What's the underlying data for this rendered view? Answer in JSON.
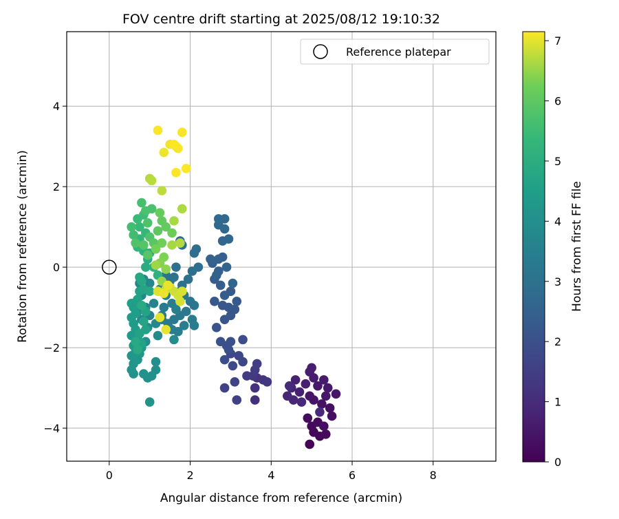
{
  "chart_data": {
    "type": "scatter",
    "title": "FOV centre drift starting at 2025/08/12 19:10:32",
    "xlabel": "Angular distance from reference (arcmin)",
    "ylabel": "Rotation from reference (arcmin)",
    "xlim": [
      -1.05,
      9.55
    ],
    "ylim": [
      -4.82,
      5.85
    ],
    "xticks": [
      {
        "value": 0,
        "label": "0"
      },
      {
        "value": 2,
        "label": "2"
      },
      {
        "value": 4,
        "label": "4"
      },
      {
        "value": 6,
        "label": "6"
      },
      {
        "value": 8,
        "label": "8"
      }
    ],
    "yticks": [
      {
        "value": -4,
        "label": "−4"
      },
      {
        "value": -2,
        "label": "−2"
      },
      {
        "value": 0,
        "label": "0"
      },
      {
        "value": 2,
        "label": "2"
      },
      {
        "value": 4,
        "label": "4"
      }
    ],
    "grid": true,
    "colormap": "viridis",
    "colorbar": {
      "label": "Hours from first FF file",
      "range": [
        0,
        7.15
      ],
      "ticks": [
        {
          "value": 0,
          "label": "0"
        },
        {
          "value": 1,
          "label": "1"
        },
        {
          "value": 2,
          "label": "2"
        },
        {
          "value": 3,
          "label": "3"
        },
        {
          "value": 4,
          "label": "4"
        },
        {
          "value": 5,
          "label": "5"
        },
        {
          "value": 6,
          "label": "6"
        },
        {
          "value": 7,
          "label": "7"
        }
      ]
    },
    "reference": {
      "name": "Reference platepar",
      "x": 0,
      "y": 0,
      "marker": "open circle"
    },
    "legend": {
      "position": "top-right",
      "entries": [
        "Reference platepar"
      ]
    },
    "points_columns": [
      "x_arcmin",
      "y_arcmin",
      "hours"
    ],
    "points": [
      [
        4.95,
        -4.4,
        0.05
      ],
      [
        5.05,
        -4.1,
        0.1
      ],
      [
        5.2,
        -4.2,
        0.12
      ],
      [
        5.35,
        -4.15,
        0.15
      ],
      [
        5.0,
        -3.95,
        0.2
      ],
      [
        4.9,
        -3.75,
        0.22
      ],
      [
        5.15,
        -3.85,
        0.25
      ],
      [
        5.3,
        -3.95,
        0.3
      ],
      [
        5.5,
        -3.7,
        0.32
      ],
      [
        5.45,
        -3.5,
        0.35
      ],
      [
        5.25,
        -3.4,
        0.4
      ],
      [
        5.05,
        -3.3,
        0.42
      ],
      [
        4.95,
        -3.2,
        0.45
      ],
      [
        5.35,
        -3.2,
        0.48
      ],
      [
        5.6,
        -3.15,
        0.5
      ],
      [
        5.4,
        -3.0,
        0.52
      ],
      [
        5.15,
        -2.95,
        0.55
      ],
      [
        5.3,
        -2.8,
        0.6
      ],
      [
        5.05,
        -2.75,
        0.62
      ],
      [
        4.95,
        -2.6,
        0.65
      ],
      [
        5.0,
        -2.5,
        0.68
      ],
      [
        4.85,
        -2.9,
        0.7
      ],
      [
        4.7,
        -3.1,
        0.72
      ],
      [
        4.6,
        -2.8,
        0.75
      ],
      [
        4.5,
        -3.0,
        0.8
      ],
      [
        4.4,
        -3.2,
        0.85
      ],
      [
        4.55,
        -3.3,
        0.88
      ],
      [
        4.75,
        -3.35,
        0.9
      ],
      [
        4.45,
        -2.95,
        0.95
      ],
      [
        5.2,
        -3.6,
        0.98
      ],
      [
        3.6,
        -3.3,
        1.1
      ],
      [
        3.6,
        -3.0,
        1.15
      ],
      [
        3.65,
        -2.75,
        1.2
      ],
      [
        3.8,
        -2.8,
        1.25
      ],
      [
        3.9,
        -2.85,
        1.3
      ],
      [
        3.55,
        -2.7,
        1.35
      ],
      [
        3.4,
        -2.7,
        1.4
      ],
      [
        3.6,
        -2.55,
        1.45
      ],
      [
        3.65,
        -2.4,
        1.5
      ],
      [
        3.15,
        -3.3,
        1.55
      ],
      [
        2.85,
        -3.0,
        1.6
      ],
      [
        3.1,
        -2.85,
        1.65
      ],
      [
        3.3,
        -2.35,
        1.7
      ],
      [
        3.2,
        -2.2,
        1.75
      ],
      [
        3.0,
        -2.15,
        1.8
      ],
      [
        3.05,
        -2.45,
        1.85
      ],
      [
        3.3,
        -1.8,
        1.9
      ],
      [
        2.9,
        -1.95,
        1.95
      ],
      [
        2.85,
        -2.3,
        1.92
      ],
      [
        2.95,
        -2.05,
        1.98
      ],
      [
        3.0,
        -1.85,
        2.0
      ],
      [
        2.75,
        -1.85,
        2.05
      ],
      [
        2.65,
        -1.5,
        2.1
      ],
      [
        2.85,
        -1.3,
        2.12
      ],
      [
        3.0,
        -1.2,
        2.15
      ],
      [
        3.1,
        -1.05,
        2.18
      ],
      [
        2.95,
        -1.0,
        2.2
      ],
      [
        2.8,
        -0.95,
        2.22
      ],
      [
        2.6,
        -0.85,
        2.25
      ],
      [
        3.15,
        -0.85,
        2.28
      ],
      [
        3.0,
        -0.6,
        2.3
      ],
      [
        2.85,
        -0.7,
        2.35
      ],
      [
        2.75,
        -0.45,
        2.38
      ],
      [
        2.6,
        -0.3,
        2.4
      ],
      [
        2.7,
        -0.1,
        2.42
      ],
      [
        2.55,
        0.1,
        2.45
      ],
      [
        2.8,
        0.25,
        2.48
      ],
      [
        2.7,
        0.2,
        2.5
      ],
      [
        2.5,
        0.2,
        2.52
      ],
      [
        2.65,
        -0.2,
        2.55
      ],
      [
        3.05,
        -0.4,
        2.58
      ],
      [
        2.9,
        0.0,
        2.6
      ],
      [
        2.8,
        0.65,
        2.62
      ],
      [
        2.95,
        0.7,
        2.65
      ],
      [
        2.85,
        0.95,
        2.68
      ],
      [
        2.7,
        1.05,
        2.7
      ],
      [
        2.85,
        1.2,
        2.72
      ],
      [
        2.7,
        1.2,
        2.75
      ],
      [
        1.75,
        0.65,
        2.8
      ],
      [
        1.8,
        0.55,
        2.82
      ],
      [
        2.1,
        0.35,
        2.85
      ],
      [
        2.15,
        0.45,
        2.88
      ],
      [
        2.2,
        0.0,
        2.9
      ],
      [
        2.05,
        -0.1,
        2.92
      ],
      [
        1.95,
        -0.3,
        2.95
      ],
      [
        1.8,
        -0.45,
        2.98
      ],
      [
        1.65,
        0.0,
        3.0
      ],
      [
        1.6,
        -0.25,
        3.02
      ],
      [
        1.5,
        -0.35,
        3.05
      ],
      [
        1.4,
        -0.2,
        3.08
      ],
      [
        1.85,
        -0.7,
        3.1
      ],
      [
        2.0,
        -0.85,
        3.12
      ],
      [
        2.1,
        -0.95,
        3.15
      ],
      [
        1.9,
        -1.1,
        3.18
      ],
      [
        1.75,
        -1.2,
        3.2
      ],
      [
        1.6,
        -1.3,
        3.22
      ],
      [
        1.45,
        -1.4,
        3.25
      ],
      [
        1.3,
        -1.3,
        3.28
      ],
      [
        1.35,
        -1.0,
        3.3
      ],
      [
        1.55,
        -0.9,
        3.32
      ],
      [
        2.05,
        -1.3,
        3.35
      ],
      [
        2.1,
        -1.45,
        3.38
      ],
      [
        1.85,
        -1.45,
        3.4
      ],
      [
        1.7,
        -1.6,
        3.42
      ],
      [
        1.55,
        -1.55,
        3.45
      ],
      [
        1.3,
        -1.2,
        3.48
      ],
      [
        1.75,
        -0.6,
        3.5
      ],
      [
        1.65,
        -1.05,
        3.52
      ],
      [
        1.4,
        -0.7,
        3.55
      ],
      [
        1.25,
        -0.55,
        3.58
      ],
      [
        1.1,
        -0.9,
        3.6
      ],
      [
        1.0,
        -1.2,
        3.62
      ],
      [
        0.9,
        -1.0,
        3.65
      ],
      [
        0.8,
        -0.7,
        3.68
      ],
      [
        0.75,
        -0.4,
        3.7
      ],
      [
        0.85,
        -0.3,
        3.72
      ],
      [
        1.0,
        -0.4,
        3.75
      ],
      [
        1.15,
        -1.4,
        3.78
      ],
      [
        0.95,
        -1.5,
        3.8
      ],
      [
        0.8,
        -1.3,
        3.82
      ],
      [
        1.2,
        -1.7,
        3.85
      ],
      [
        1.6,
        -1.8,
        3.88
      ],
      [
        0.6,
        -0.9,
        3.9
      ],
      [
        0.7,
        -1.1,
        3.92
      ],
      [
        0.9,
        -1.85,
        3.95
      ],
      [
        1.15,
        -2.35,
        3.98
      ],
      [
        1.15,
        -2.55,
        4.0
      ],
      [
        1.05,
        -2.7,
        4.02
      ],
      [
        0.95,
        -2.75,
        4.05
      ],
      [
        1.0,
        -3.35,
        4.08
      ],
      [
        0.85,
        -2.65,
        4.1
      ],
      [
        0.6,
        -2.65,
        4.12
      ],
      [
        0.55,
        -2.55,
        4.15
      ],
      [
        0.6,
        -2.4,
        4.18
      ],
      [
        0.55,
        -2.2,
        4.2
      ],
      [
        0.7,
        -2.3,
        4.22
      ],
      [
        0.75,
        -2.15,
        4.25
      ],
      [
        0.8,
        -2.0,
        4.28
      ],
      [
        0.65,
        -2.1,
        4.3
      ],
      [
        0.6,
        -1.95,
        4.32
      ],
      [
        0.7,
        -1.75,
        4.35
      ],
      [
        0.55,
        -1.7,
        4.38
      ],
      [
        0.65,
        -1.55,
        4.4
      ],
      [
        0.6,
        -1.4,
        4.42
      ],
      [
        0.55,
        -1.25,
        4.45
      ],
      [
        0.65,
        -1.15,
        4.48
      ],
      [
        0.6,
        -1.0,
        4.5
      ],
      [
        0.55,
        -0.9,
        4.52
      ],
      [
        0.7,
        -0.8,
        4.55
      ],
      [
        0.75,
        -0.6,
        4.58
      ],
      [
        0.8,
        -1.9,
        4.6
      ],
      [
        0.75,
        -1.65,
        4.62
      ],
      [
        0.9,
        -1.55,
        4.65
      ],
      [
        0.85,
        -1.35,
        4.68
      ],
      [
        0.9,
        -1.1,
        4.7
      ],
      [
        0.85,
        -0.55,
        4.72
      ],
      [
        1.0,
        -0.6,
        4.75
      ],
      [
        0.8,
        -0.35,
        4.78
      ],
      [
        0.75,
        -0.25,
        4.8
      ],
      [
        0.65,
        -1.85,
        4.82
      ],
      [
        0.7,
        -2.05,
        4.85
      ],
      [
        0.8,
        -0.95,
        4.88
      ],
      [
        0.9,
        0.0,
        4.95
      ],
      [
        0.95,
        0.2,
        5.0
      ],
      [
        1.0,
        0.35,
        5.05
      ],
      [
        1.1,
        0.0,
        5.1
      ],
      [
        1.2,
        -0.2,
        5.15
      ],
      [
        0.85,
        0.4,
        5.2
      ],
      [
        0.7,
        0.5,
        5.25
      ],
      [
        0.75,
        0.7,
        5.3
      ],
      [
        0.9,
        0.85,
        5.35
      ],
      [
        0.75,
        1.0,
        5.4
      ],
      [
        0.7,
        1.2,
        5.45
      ],
      [
        0.85,
        1.3,
        5.5
      ],
      [
        0.6,
        0.8,
        5.55
      ],
      [
        0.55,
        1.0,
        5.6
      ],
      [
        0.8,
        1.6,
        5.65
      ],
      [
        0.9,
        1.4,
        5.7
      ],
      [
        1.05,
        1.45,
        5.72
      ],
      [
        0.95,
        1.1,
        5.75
      ],
      [
        0.65,
        0.6,
        5.78
      ],
      [
        1.0,
        0.75,
        5.8
      ],
      [
        0.85,
        0.55,
        5.85
      ],
      [
        0.95,
        0.3,
        5.9
      ],
      [
        1.1,
        0.6,
        5.95
      ],
      [
        1.2,
        0.9,
        6.0
      ],
      [
        1.3,
        1.15,
        6.05
      ],
      [
        1.4,
        1.0,
        6.1
      ],
      [
        1.25,
        1.35,
        6.15
      ],
      [
        1.55,
        0.85,
        6.2
      ],
      [
        1.3,
        0.6,
        6.25
      ],
      [
        1.15,
        0.45,
        6.3
      ],
      [
        1.35,
        0.25,
        6.35
      ],
      [
        1.25,
        0.1,
        6.4
      ],
      [
        1.4,
        -0.05,
        6.45
      ],
      [
        1.3,
        -0.35,
        6.5
      ],
      [
        1.15,
        0.05,
        6.55
      ],
      [
        1.55,
        0.55,
        6.6
      ],
      [
        1.6,
        1.15,
        6.62
      ],
      [
        1.8,
        1.45,
        6.65
      ],
      [
        1.75,
        0.6,
        6.68
      ],
      [
        1.0,
        2.2,
        6.7
      ],
      [
        1.05,
        2.15,
        6.72
      ],
      [
        1.3,
        1.9,
        6.75
      ],
      [
        1.4,
        -0.55,
        6.8
      ],
      [
        1.5,
        -0.5,
        6.82
      ],
      [
        1.6,
        -0.6,
        6.85
      ],
      [
        1.7,
        -0.7,
        6.88
      ],
      [
        1.75,
        -0.85,
        6.9
      ],
      [
        1.8,
        -0.6,
        6.92
      ],
      [
        1.2,
        -0.6,
        6.95
      ],
      [
        1.25,
        -1.25,
        6.98
      ],
      [
        1.4,
        -1.55,
        7.0
      ],
      [
        1.45,
        -0.45,
        7.02
      ],
      [
        1.35,
        -0.65,
        7.04
      ],
      [
        1.35,
        2.85,
        7.05
      ],
      [
        1.5,
        3.05,
        7.07
      ],
      [
        1.65,
        3.0,
        7.08
      ],
      [
        1.7,
        2.95,
        7.1
      ],
      [
        1.8,
        3.35,
        7.11
      ],
      [
        1.2,
        3.4,
        7.12
      ],
      [
        1.65,
        2.35,
        7.13
      ],
      [
        1.9,
        2.45,
        7.14
      ],
      [
        1.6,
        3.05,
        7.14
      ]
    ]
  }
}
